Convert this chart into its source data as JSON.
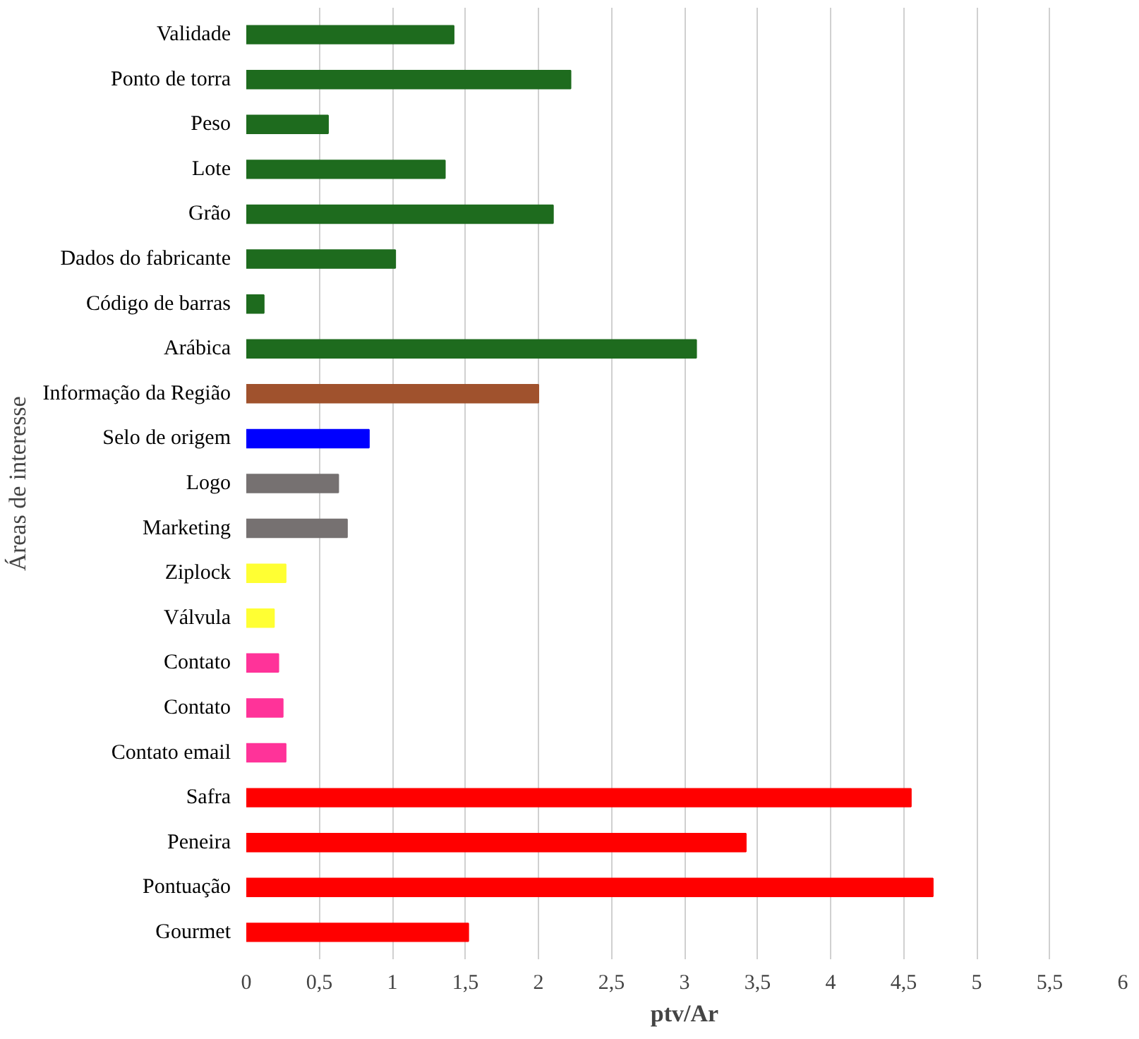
{
  "chart_data": {
    "type": "bar",
    "orientation": "horizontal",
    "xlabel": "ptv/Ar",
    "ylabel": "Áreas de interesse",
    "categories": [
      "Validade",
      "Ponto de torra",
      "Peso",
      "Lote",
      "Grão",
      "Dados do fabricante",
      "Código de barras",
      "Arábica",
      "Informação da Região",
      "Selo de origem",
      "Logo",
      "Marketing",
      "Ziplock",
      "Válvula",
      "Contato",
      "Contato",
      "Contato email",
      "Safra",
      "Peneira",
      "Pontuação",
      "Gourmet"
    ],
    "values": [
      1.42,
      2.22,
      0.56,
      1.36,
      2.1,
      1.02,
      0.12,
      3.08,
      2.0,
      0.84,
      0.63,
      0.69,
      0.27,
      0.19,
      0.22,
      0.25,
      0.27,
      4.55,
      3.42,
      4.7,
      1.52
    ],
    "colors": [
      "#1e6b1e",
      "#1e6b1e",
      "#1e6b1e",
      "#1e6b1e",
      "#1e6b1e",
      "#1e6b1e",
      "#1e6b1e",
      "#1e6b1e",
      "#a0522d",
      "#0000ff",
      "#767171",
      "#767171",
      "#ffff33",
      "#ffff33",
      "#ff3399",
      "#ff3399",
      "#ff3399",
      "#ff0000",
      "#ff0000",
      "#ff0000",
      "#ff0000"
    ],
    "xlim": [
      0,
      6
    ],
    "xticks": [
      0,
      {
        "value": 0.5,
        "label": "0,5"
      },
      1,
      {
        "value": 1.5,
        "label": "1,5"
      },
      2,
      {
        "value": 2.5,
        "label": "2,5"
      },
      3,
      {
        "value": 3.5,
        "label": "3,5"
      },
      4,
      {
        "value": 4.5,
        "label": "4,5"
      },
      5,
      {
        "value": 5.5,
        "label": "5,5"
      },
      6
    ],
    "grid": "x"
  }
}
